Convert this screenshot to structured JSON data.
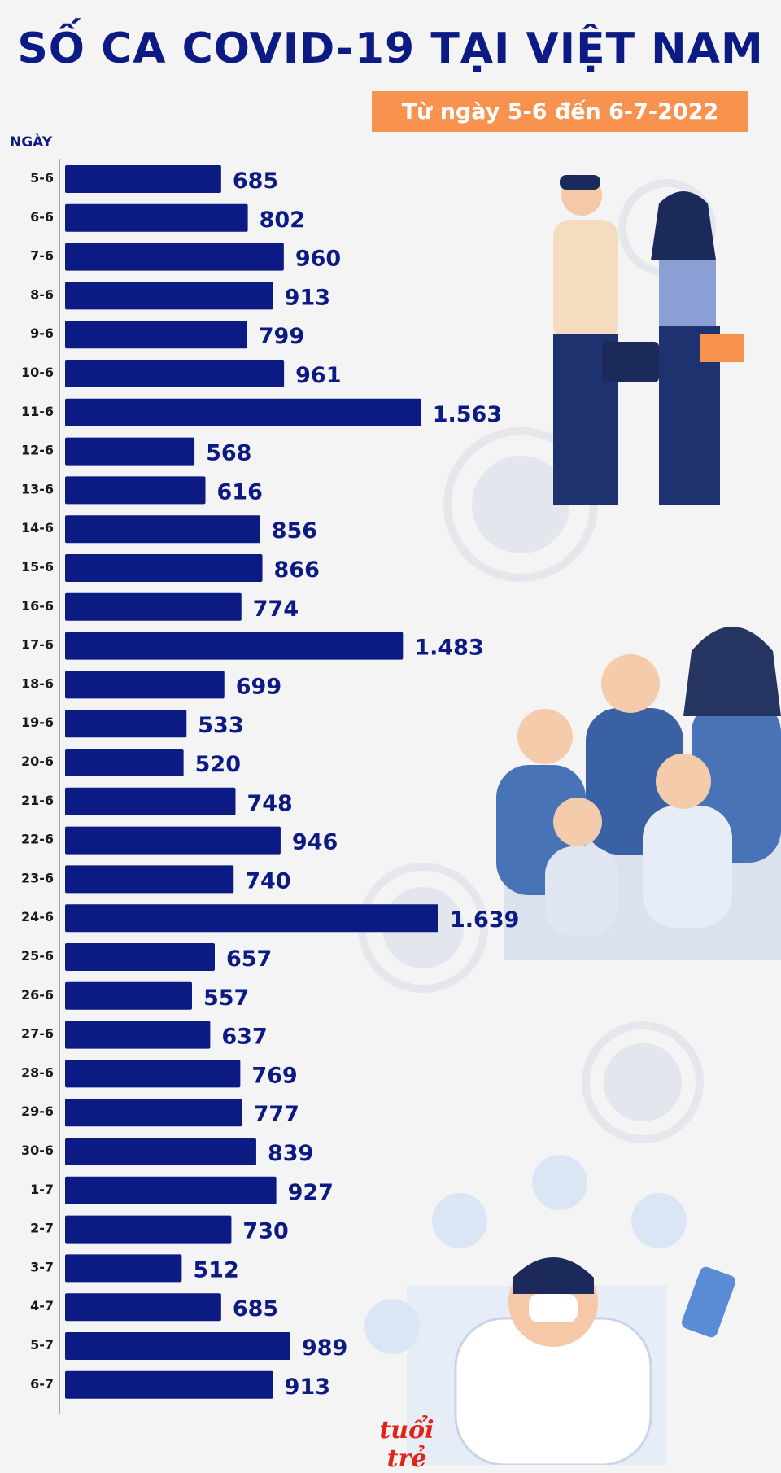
{
  "title": "SỐ CA COVID-19 TẠI VIỆT NAM",
  "subtitle": "Từ ngày 5-6 đến 6-7-2022",
  "brand": "tuổi trẻ",
  "colors": {
    "bar": "#0c1a83",
    "title": "#0c1a83",
    "subtitle_bg": "#f7924f",
    "background": "#f4f4f5"
  },
  "chart_data": {
    "type": "bar",
    "orientation": "horizontal",
    "title": "SỐ CA COVID-19 TẠI VIỆT NAM",
    "subtitle": "Từ ngày 5-6 đến 6-7-2022",
    "ylabel": "NGÀY",
    "xlabel": "",
    "categories": [
      "5-6",
      "6-6",
      "7-6",
      "8-6",
      "9-6",
      "10-6",
      "11-6",
      "12-6",
      "13-6",
      "14-6",
      "15-6",
      "16-6",
      "17-6",
      "18-6",
      "19-6",
      "20-6",
      "21-6",
      "22-6",
      "23-6",
      "24-6",
      "25-6",
      "26-6",
      "27-6",
      "28-6",
      "29-6",
      "30-6",
      "1-7",
      "2-7",
      "3-7",
      "4-7",
      "5-7",
      "6-7"
    ],
    "values": [
      685,
      802,
      960,
      913,
      799,
      961,
      1563,
      568,
      616,
      856,
      866,
      774,
      1483,
      699,
      533,
      520,
      748,
      946,
      740,
      1639,
      657,
      557,
      637,
      769,
      777,
      839,
      927,
      730,
      512,
      685,
      989,
      913
    ],
    "value_labels": [
      "685",
      "802",
      "960",
      "913",
      "799",
      "961",
      "1.563",
      "568",
      "616",
      "856",
      "866",
      "774",
      "1.483",
      "699",
      "533",
      "520",
      "748",
      "946",
      "740",
      "1.639",
      "657",
      "557",
      "637",
      "769",
      "777",
      "839",
      "927",
      "730",
      "512",
      "685",
      "989",
      "913"
    ],
    "xlim": [
      0,
      1639
    ],
    "grid": false,
    "legend": "none"
  }
}
